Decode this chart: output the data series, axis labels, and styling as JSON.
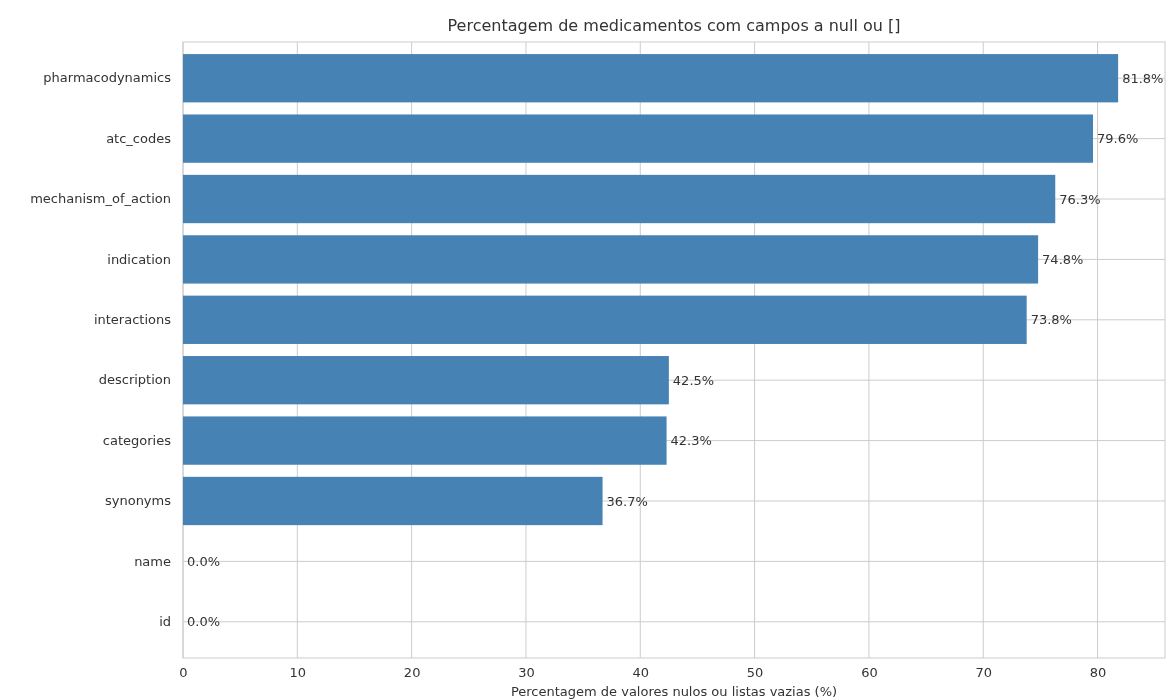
{
  "chart_data": {
    "type": "bar",
    "orientation": "horizontal",
    "title": "Percentagem de medicamentos com campos a null ou []",
    "xlabel": "Percentagem de valores nulos ou listas vazias (%)",
    "categories": [
      "pharmacodynamics",
      "atc_codes",
      "mechanism_of_action",
      "indication",
      "interactions",
      "description",
      "categories",
      "synonyms",
      "name",
      "id"
    ],
    "values": [
      81.8,
      79.6,
      76.3,
      74.8,
      73.8,
      42.5,
      42.3,
      36.7,
      0.0,
      0.0
    ],
    "value_labels": [
      "81.8%",
      "79.6%",
      "76.3%",
      "74.8%",
      "73.8%",
      "42.5%",
      "42.3%",
      "36.7%",
      "0.0%",
      "0.0%"
    ],
    "color": "#4682b4",
    "xlim": [
      0,
      85.9
    ],
    "xticks": [
      0,
      10,
      20,
      30,
      40,
      50,
      60,
      70,
      80
    ],
    "grid": true
  }
}
